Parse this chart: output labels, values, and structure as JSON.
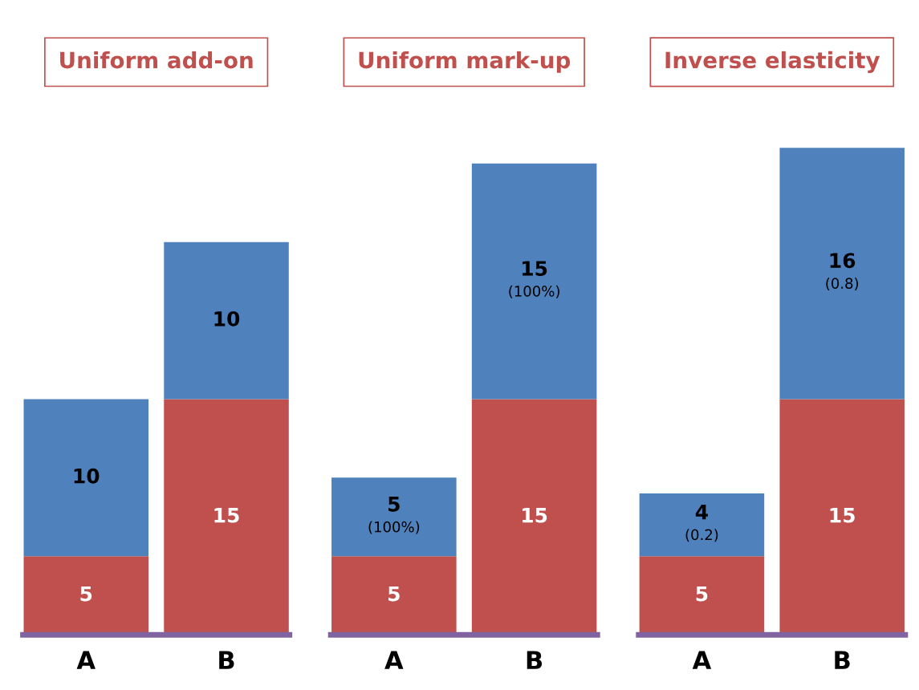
{
  "chart_data": [
    {
      "type": "bar",
      "title": "Uniform add-on",
      "categories": [
        "A",
        "B"
      ],
      "stacked": true,
      "data_labels": true,
      "tick_labels": "x",
      "grid": false,
      "legend": false,
      "series": [
        {
          "color": "#c0504d",
          "values": [
            5,
            15
          ]
        },
        {
          "color": "#4f81bd",
          "values": [
            10,
            10
          ]
        }
      ]
    },
    {
      "type": "bar",
      "title": "Uniform mark-up",
      "categories": [
        "A",
        "B"
      ],
      "stacked": true,
      "tick_labels": "x",
      "grid": false,
      "legend": false,
      "series": [
        {
          "color": "#c0504d",
          "values": [
            5,
            15
          ],
          "value_labels": [
            "5",
            "15"
          ]
        },
        {
          "color": "#4f81bd",
          "values": [
            5,
            15
          ],
          "value_labels": [
            "5\n(100%)",
            "15\n(100%)"
          ]
        }
      ]
    },
    {
      "type": "bar",
      "title": "Inverse elasticity",
      "categories": [
        "A",
        "B"
      ],
      "stacked": true,
      "tick_labels": "x",
      "grid": false,
      "legend": false,
      "series": [
        {
          "color": "#c0504d",
          "values": [
            5,
            15
          ],
          "value_labels": [
            "5",
            "15"
          ]
        },
        {
          "color": "#4f81bd",
          "values": [
            4,
            16
          ],
          "value_labels": [
            "4\n(0.2)",
            "16\n(0.8)"
          ]
        }
      ]
    }
  ]
}
